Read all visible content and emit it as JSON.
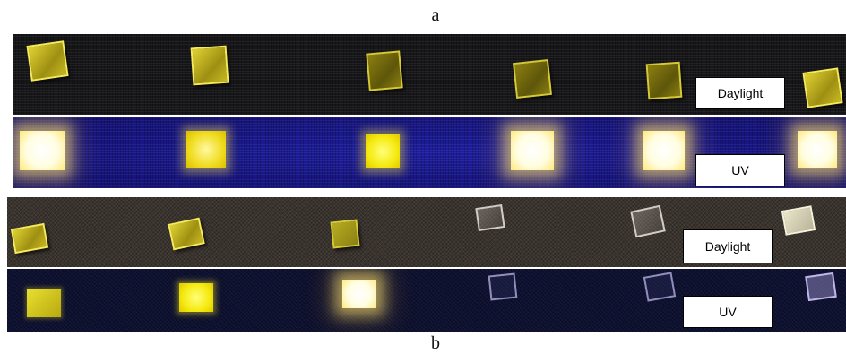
{
  "panels": {
    "a": {
      "letter": "a",
      "daylight_label": "Daylight",
      "uv_label": "UV"
    },
    "b": {
      "letter": "b",
      "daylight_label": "Daylight",
      "uv_label": "UV"
    }
  }
}
